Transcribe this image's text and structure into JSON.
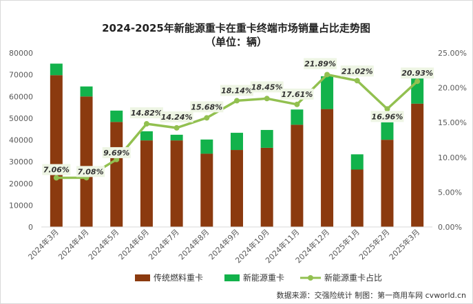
{
  "chart_data": {
    "type": "bar",
    "stacked": true,
    "title_line1": "2024-2025年新能源重卡在重卡终端市场销量占比走势图",
    "title_line2": "（单位：辆）",
    "categories": [
      "2024年3月",
      "2024年4月",
      "2024年5月",
      "2024年6月",
      "2024年7月",
      "2024年8月",
      "2024年9月",
      "2024年10月",
      "2024年11月",
      "2024年12月",
      "2025年1月",
      "2025年2月",
      "2025年3月"
    ],
    "series": [
      {
        "name": "传统燃料重卡",
        "type": "bar",
        "axis": "left",
        "values": [
          69800,
          60000,
          48300,
          39800,
          39800,
          33700,
          35400,
          36400,
          47000,
          54200,
          26400,
          40100,
          56700
        ]
      },
      {
        "name": "新能源重卡",
        "type": "bar",
        "axis": "left",
        "values": [
          5300,
          4600,
          5200,
          4200,
          2600,
          6500,
          7900,
          8200,
          7000,
          15100,
          7000,
          8000,
          15000
        ]
      },
      {
        "name": "新能源重卡占比",
        "type": "line",
        "axis": "right",
        "values": [
          7.06,
          7.08,
          9.69,
          14.82,
          14.24,
          15.68,
          18.14,
          18.45,
          17.61,
          21.89,
          21.02,
          16.96,
          20.93
        ],
        "labels": [
          "7.06%",
          "7.08%",
          "9.69%",
          "14.82%",
          "14.24%",
          "15.68%",
          "18.14%",
          "18.45%",
          "17.61%",
          "21.89%",
          "21.02%",
          "16.96%",
          "20.93%"
        ]
      }
    ],
    "y_left": {
      "min": 0,
      "max": 80000,
      "ticks": [
        "0",
        "10000",
        "20000",
        "30000",
        "40000",
        "50000",
        "60000",
        "70000",
        "80000"
      ]
    },
    "y_right": {
      "min": 0,
      "max": 25,
      "ticks": [
        "0.00%",
        "5.00%",
        "10.00%",
        "15.00%",
        "20.00%",
        "25.00%"
      ]
    },
    "grid": false,
    "legend_position": "bottom",
    "colors": {
      "traditional": "#8B3A0F",
      "new_energy": "#12B24B",
      "ratio_line": "#92C050",
      "label_bg": "#EEF5E4"
    },
    "source_text": "数据来源：交强险统计  制图：第一商用车网 cvworld.cn"
  }
}
